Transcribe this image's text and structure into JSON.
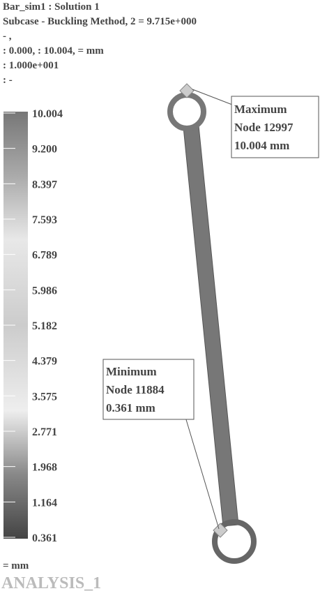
{
  "header": {
    "lines": [
      "Bar_sim1 : Solution 1",
      "Subcase - Buckling Method,  2 =  9.715e+000",
      " - ,",
      ": 0.000, : 10.004, = mm",
      ": 1.000e+001",
      ": -"
    ]
  },
  "legend": {
    "labels": [
      "10.004",
      "9.200",
      "8.397",
      "7.593",
      "6.789",
      "5.986",
      "5.182",
      "4.379",
      "3.575",
      "2.771",
      "1.968",
      "1.164",
      "0.361"
    ]
  },
  "annotations": {
    "maximum": {
      "lines": [
        "Maximum",
        "Node 12997",
        "10.004 mm"
      ]
    },
    "minimum": {
      "lines": [
        "Minimum",
        "Node 11884",
        "0.361 mm"
      ]
    }
  },
  "footer": {
    "unit": "= mm",
    "label": "ANALYSIS_1"
  }
}
